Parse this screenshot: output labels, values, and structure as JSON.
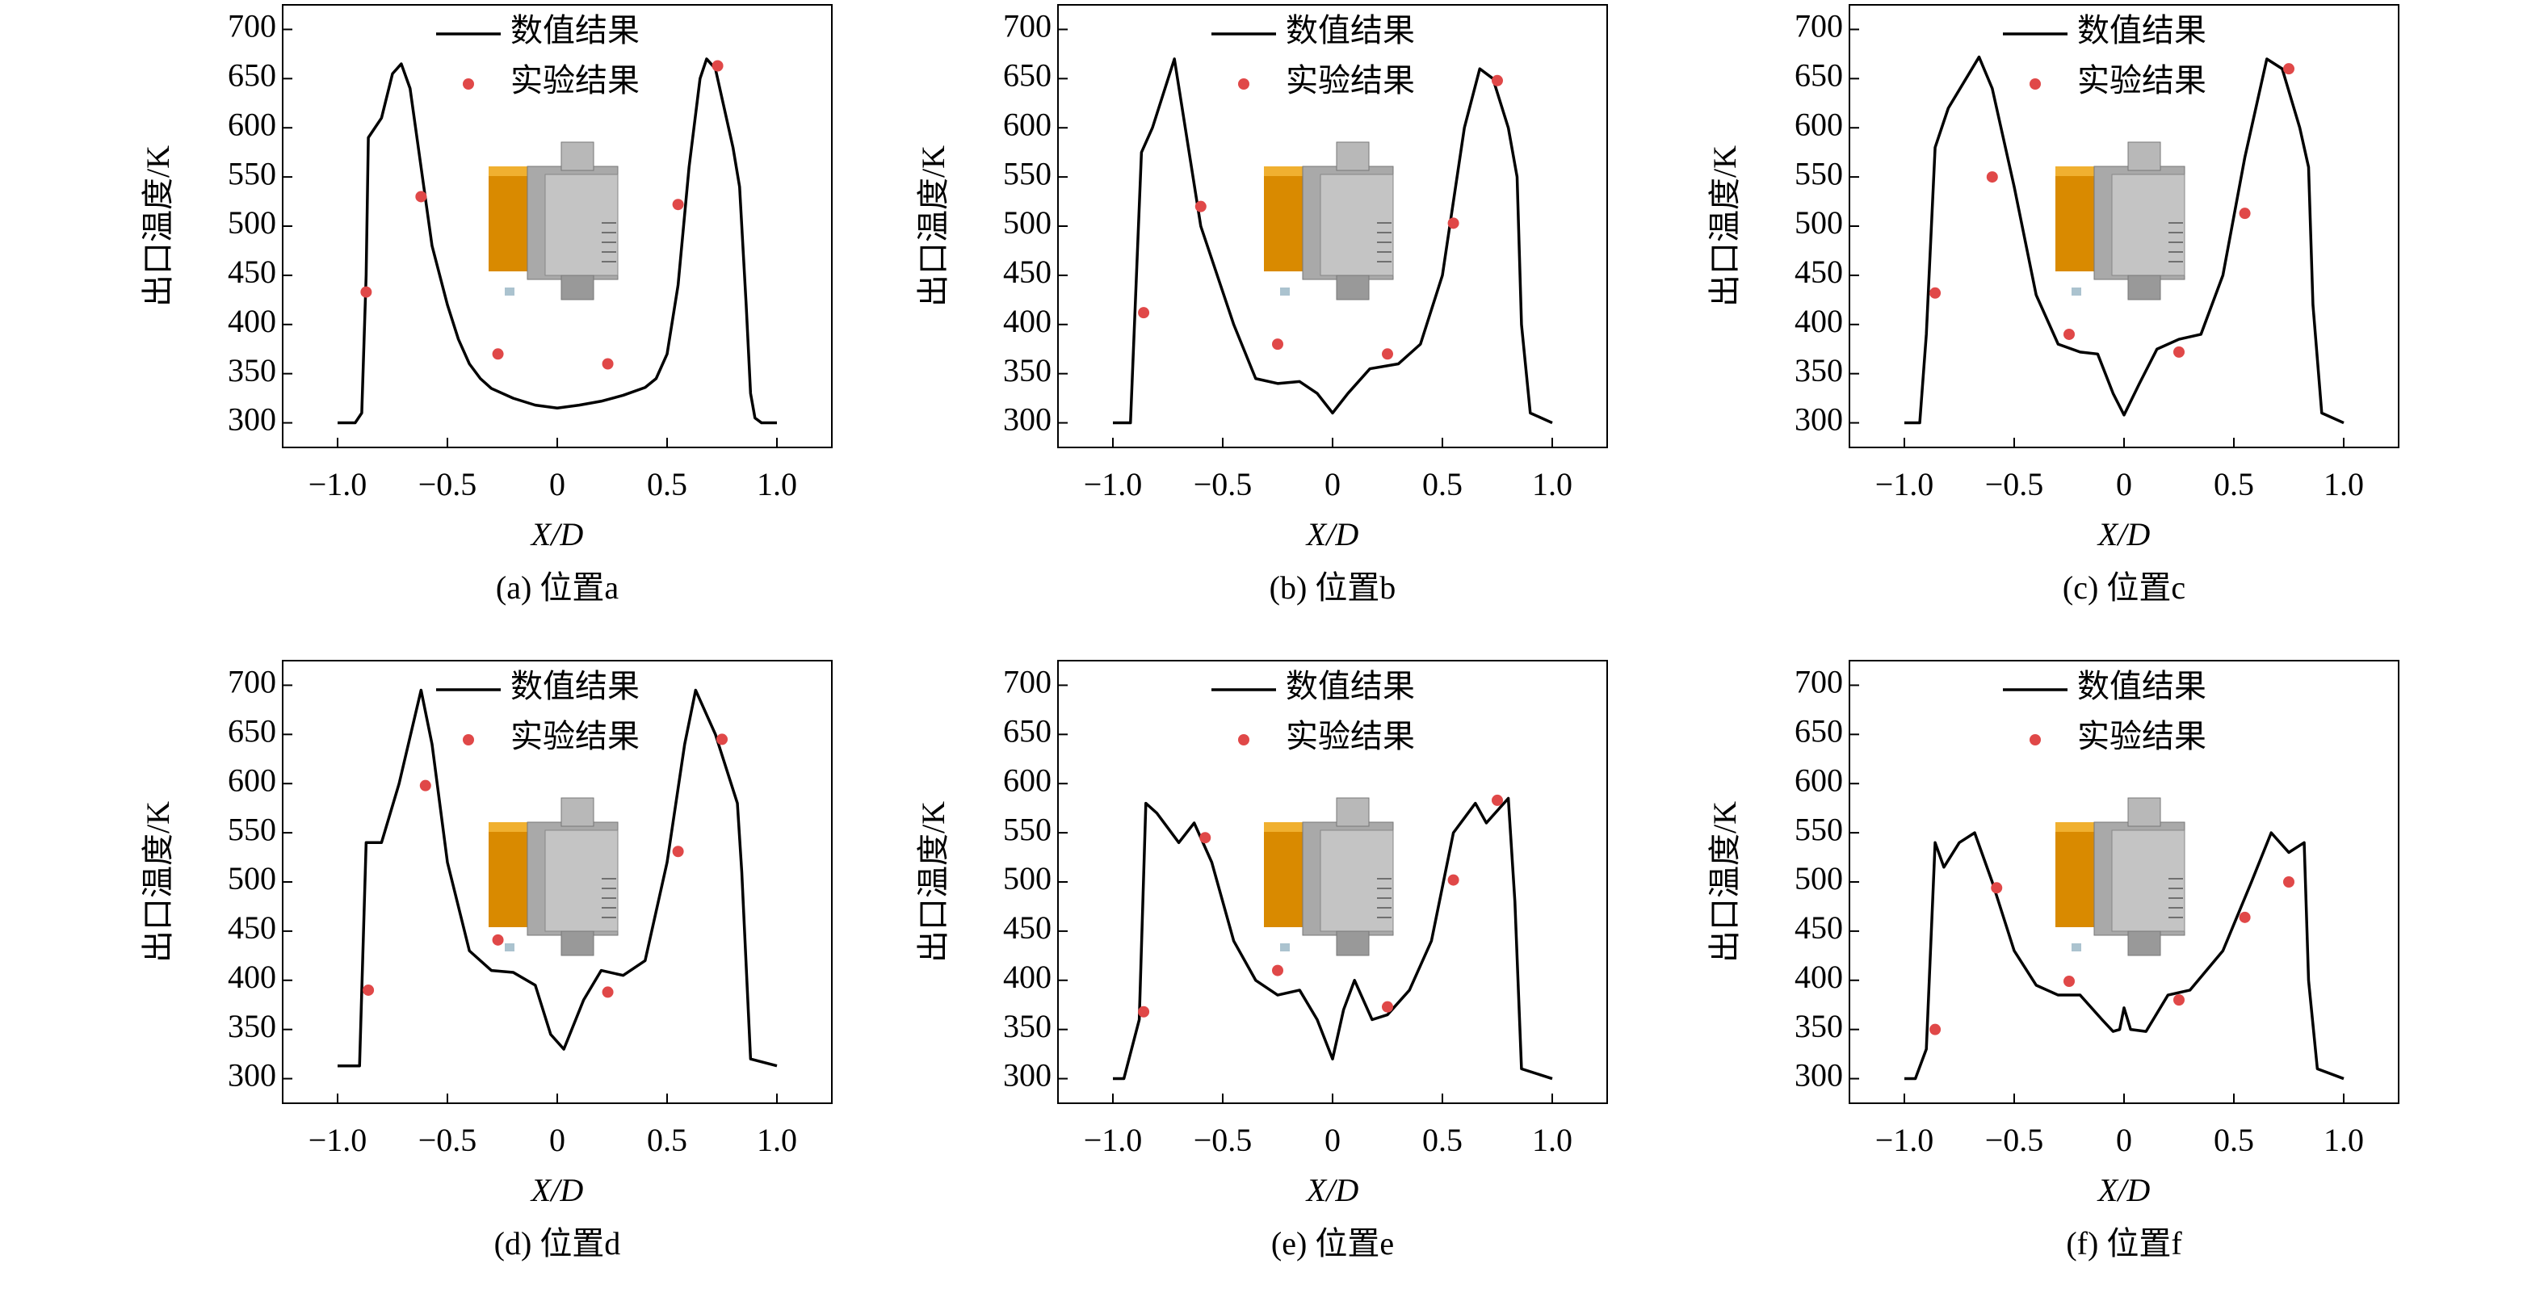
{
  "chart_data": [
    {
      "type": "line",
      "caption": "(a) 位置a",
      "xlabel": "X/D",
      "ylabel": "出口温度/K",
      "legend": "upper center",
      "xlim": [
        -1.25,
        1.25
      ],
      "ylim": [
        275,
        725
      ],
      "xticks": [
        {
          "value": -1,
          "label": "−1.0"
        },
        {
          "value": -0.5,
          "label": "−0.5"
        },
        0,
        0.5,
        {
          "value": 1,
          "label": "1.0"
        }
      ],
      "yticks": [
        300,
        350,
        400,
        450,
        500,
        550,
        600,
        650,
        700
      ],
      "series": [
        {
          "name": "数值结果",
          "color": "#000000",
          "type": "line",
          "x": [
            -1.0,
            -0.92,
            -0.89,
            -0.87,
            -0.86,
            -0.8,
            -0.75,
            -0.71,
            -0.67,
            -0.62,
            -0.57,
            -0.5,
            -0.45,
            -0.4,
            -0.35,
            -0.3,
            -0.2,
            -0.1,
            0,
            0.1,
            0.2,
            0.3,
            0.4,
            0.45,
            0.5,
            0.55,
            0.6,
            0.65,
            0.68,
            0.72,
            0.76,
            0.8,
            0.83,
            0.86,
            0.88,
            0.9,
            0.93,
            1.0
          ],
          "values": [
            300,
            300,
            310,
            450,
            590,
            610,
            655,
            665,
            640,
            560,
            480,
            420,
            385,
            360,
            345,
            335,
            325,
            318,
            315,
            318,
            322,
            328,
            336,
            345,
            370,
            440,
            560,
            650,
            670,
            660,
            620,
            580,
            540,
            420,
            330,
            305,
            300,
            300
          ]
        },
        {
          "name": "实验结果",
          "color": "#e04848",
          "type": "scatter",
          "x": [
            -0.87,
            -0.62,
            -0.27,
            0.23,
            0.55,
            0.73
          ],
          "values": [
            433,
            530,
            370,
            360,
            522,
            663
          ]
        }
      ]
    },
    {
      "type": "line",
      "caption": "(b) 位置b",
      "xlabel": "X/D",
      "ylabel": "出口温度/K",
      "legend": "upper center",
      "xlim": [
        -1.25,
        1.25
      ],
      "ylim": [
        275,
        725
      ],
      "xticks": [
        {
          "value": -1,
          "label": "−1.0"
        },
        {
          "value": -0.5,
          "label": "−0.5"
        },
        0,
        0.5,
        {
          "value": 1,
          "label": "1.0"
        }
      ],
      "yticks": [
        300,
        350,
        400,
        450,
        500,
        550,
        600,
        650,
        700
      ],
      "series": [
        {
          "name": "数值结果",
          "color": "#000000",
          "type": "line",
          "x": [
            -1.0,
            -0.92,
            -0.87,
            -0.82,
            -0.72,
            -0.6,
            -0.45,
            -0.35,
            -0.25,
            -0.15,
            -0.07,
            0,
            0.07,
            0.17,
            0.3,
            0.4,
            0.5,
            0.6,
            0.67,
            0.73,
            0.8,
            0.84,
            0.86,
            0.9,
            1.0
          ],
          "values": [
            300,
            300,
            575,
            600,
            670,
            500,
            400,
            345,
            340,
            342,
            330,
            310,
            330,
            355,
            360,
            380,
            450,
            600,
            660,
            650,
            600,
            550,
            400,
            310,
            300
          ]
        },
        {
          "name": "实验结果",
          "color": "#e04848",
          "type": "scatter",
          "x": [
            -0.86,
            -0.6,
            -0.25,
            0.25,
            0.55,
            0.75
          ],
          "values": [
            412,
            520,
            380,
            370,
            503,
            648
          ]
        }
      ]
    },
    {
      "type": "line",
      "caption": "(c) 位置c",
      "xlabel": "X/D",
      "ylabel": "出口温度/K",
      "legend": "upper center",
      "xlim": [
        -1.25,
        1.25
      ],
      "ylim": [
        275,
        725
      ],
      "xticks": [
        {
          "value": -1,
          "label": "−1.0"
        },
        {
          "value": -0.5,
          "label": "−0.5"
        },
        0,
        0.5,
        {
          "value": 1,
          "label": "1.0"
        }
      ],
      "yticks": [
        300,
        350,
        400,
        450,
        500,
        550,
        600,
        650,
        700
      ],
      "series": [
        {
          "name": "数值结果",
          "color": "#000000",
          "type": "line",
          "x": [
            -1.0,
            -0.93,
            -0.9,
            -0.86,
            -0.8,
            -0.66,
            -0.6,
            -0.5,
            -0.4,
            -0.3,
            -0.2,
            -0.12,
            -0.05,
            0,
            0.07,
            0.15,
            0.25,
            0.35,
            0.45,
            0.55,
            0.65,
            0.72,
            0.8,
            0.84,
            0.86,
            0.9,
            1.0
          ],
          "values": [
            300,
            300,
            390,
            580,
            620,
            672,
            640,
            540,
            430,
            380,
            372,
            370,
            330,
            308,
            340,
            375,
            385,
            390,
            450,
            570,
            670,
            660,
            600,
            560,
            420,
            310,
            300
          ]
        },
        {
          "name": "实验结果",
          "color": "#e04848",
          "type": "scatter",
          "x": [
            -0.86,
            -0.6,
            -0.25,
            0.25,
            0.55,
            0.75
          ],
          "values": [
            432,
            550,
            390,
            372,
            513,
            660
          ]
        }
      ]
    },
    {
      "type": "line",
      "caption": "(d) 位置d",
      "xlabel": "X/D",
      "ylabel": "出口温度/K",
      "legend": "upper center",
      "xlim": [
        -1.25,
        1.25
      ],
      "ylim": [
        275,
        725
      ],
      "xticks": [
        {
          "value": -1,
          "label": "−1.0"
        },
        {
          "value": -0.5,
          "label": "−0.5"
        },
        0,
        0.5,
        {
          "value": 1,
          "label": "1.0"
        }
      ],
      "yticks": [
        300,
        350,
        400,
        450,
        500,
        550,
        600,
        650,
        700
      ],
      "series": [
        {
          "name": "数值结果",
          "color": "#000000",
          "type": "line",
          "x": [
            -1.0,
            -0.9,
            -0.87,
            -0.8,
            -0.72,
            -0.62,
            -0.57,
            -0.5,
            -0.4,
            -0.3,
            -0.2,
            -0.1,
            -0.03,
            0.03,
            0.12,
            0.2,
            0.3,
            0.4,
            0.5,
            0.58,
            0.63,
            0.72,
            0.82,
            0.84,
            0.88,
            1.0
          ],
          "values": [
            313,
            313,
            540,
            540,
            600,
            695,
            640,
            520,
            430,
            410,
            408,
            395,
            345,
            330,
            380,
            410,
            405,
            420,
            520,
            640,
            695,
            650,
            580,
            510,
            320,
            313
          ]
        },
        {
          "name": "实验结果",
          "color": "#e04848",
          "type": "scatter",
          "x": [
            -0.86,
            -0.6,
            -0.27,
            0.23,
            0.55,
            0.75
          ],
          "values": [
            390,
            598,
            441,
            388,
            531,
            645
          ]
        }
      ]
    },
    {
      "type": "line",
      "caption": "(e) 位置e",
      "xlabel": "X/D",
      "ylabel": "出口温度/K",
      "legend": "upper center",
      "xlim": [
        -1.25,
        1.25
      ],
      "ylim": [
        275,
        725
      ],
      "xticks": [
        {
          "value": -1,
          "label": "−1.0"
        },
        {
          "value": -0.5,
          "label": "−0.5"
        },
        0,
        0.5,
        {
          "value": 1,
          "label": "1.0"
        }
      ],
      "yticks": [
        300,
        350,
        400,
        450,
        500,
        550,
        600,
        650,
        700
      ],
      "series": [
        {
          "name": "数值结果",
          "color": "#000000",
          "type": "line",
          "x": [
            -1.0,
            -0.95,
            -0.88,
            -0.85,
            -0.8,
            -0.7,
            -0.63,
            -0.55,
            -0.45,
            -0.35,
            -0.25,
            -0.15,
            -0.07,
            0,
            0.05,
            0.1,
            0.18,
            0.25,
            0.35,
            0.45,
            0.55,
            0.65,
            0.7,
            0.8,
            0.83,
            0.86,
            1.0
          ],
          "values": [
            300,
            300,
            360,
            580,
            570,
            540,
            560,
            520,
            440,
            400,
            385,
            390,
            360,
            320,
            370,
            400,
            360,
            365,
            390,
            440,
            550,
            580,
            560,
            585,
            480,
            310,
            300
          ]
        },
        {
          "name": "实验结果",
          "color": "#e04848",
          "type": "scatter",
          "x": [
            -0.86,
            -0.58,
            -0.25,
            0.25,
            0.55,
            0.75
          ],
          "values": [
            368,
            545,
            410,
            373,
            502,
            583
          ]
        }
      ]
    },
    {
      "type": "line",
      "caption": "(f) 位置f",
      "xlabel": "X/D",
      "ylabel": "出口温度/K",
      "legend": "upper center",
      "xlim": [
        -1.25,
        1.25
      ],
      "ylim": [
        275,
        725
      ],
      "xticks": [
        {
          "value": -1,
          "label": "−1.0"
        },
        {
          "value": -0.5,
          "label": "−0.5"
        },
        0,
        0.5,
        {
          "value": 1,
          "label": "1.0"
        }
      ],
      "yticks": [
        300,
        350,
        400,
        450,
        500,
        550,
        600,
        650,
        700
      ],
      "series": [
        {
          "name": "数值结果",
          "color": "#000000",
          "type": "line",
          "x": [
            -1.0,
            -0.95,
            -0.9,
            -0.86,
            -0.82,
            -0.75,
            -0.68,
            -0.6,
            -0.5,
            -0.4,
            -0.3,
            -0.2,
            -0.1,
            -0.05,
            -0.02,
            0,
            0.03,
            0.1,
            0.2,
            0.3,
            0.45,
            0.58,
            0.67,
            0.75,
            0.82,
            0.84,
            0.88,
            1.0
          ],
          "values": [
            300,
            300,
            330,
            540,
            515,
            540,
            550,
            500,
            430,
            395,
            385,
            385,
            360,
            348,
            350,
            372,
            350,
            348,
            385,
            390,
            430,
            500,
            550,
            530,
            540,
            400,
            310,
            300
          ]
        },
        {
          "name": "实验结果",
          "color": "#e04848",
          "type": "scatter",
          "x": [
            -0.86,
            -0.58,
            -0.25,
            0.25,
            0.55,
            0.75
          ],
          "values": [
            350,
            494,
            399,
            380,
            464,
            500
          ]
        }
      ]
    }
  ]
}
